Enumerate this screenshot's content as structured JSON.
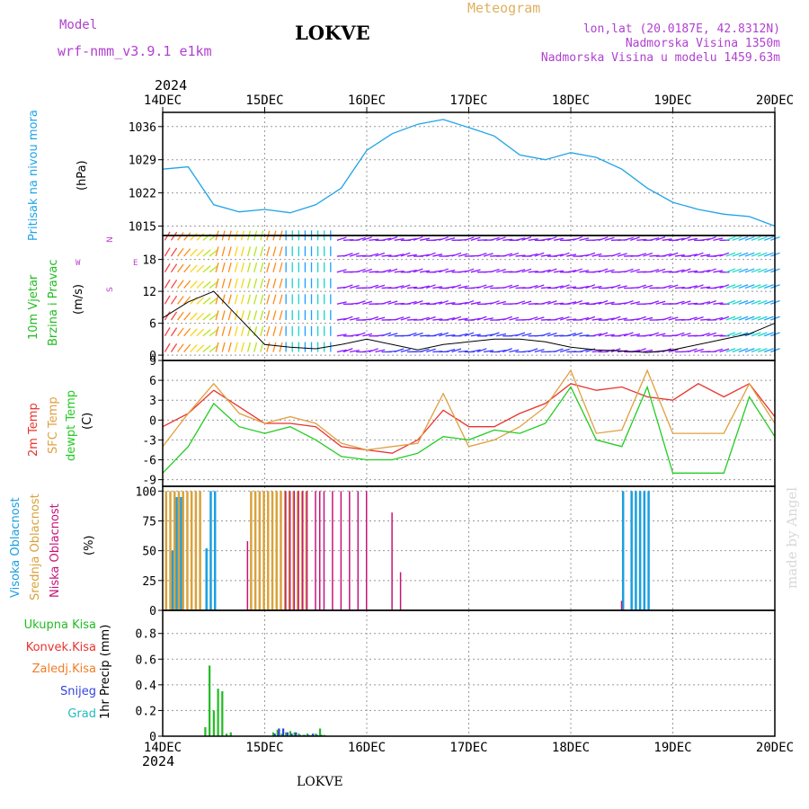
{
  "header": {
    "model_label": "Model",
    "model_name": "wrf-nmm_v3.9.1 e1km",
    "station": "LOKVE",
    "meteogram_label": "Meteogram",
    "lonlat": "lon,lat (20.0187E, 42.8312N)",
    "altitude": "Nadmorska Visina 1350m",
    "model_altitude": "Nadmorska Visina u modelu 1459.63m",
    "year": "2024",
    "footer_station": "LOKVE",
    "credit": "made by Angel"
  },
  "colors": {
    "pressure": "#1fa3e8",
    "wind_speed": "#000000",
    "temp2m": "#e8342e",
    "sfc_temp": "#e0a040",
    "dewpoint": "#22cc22",
    "high_cloud": "#1a9fe0",
    "mid_cloud": "#d9a23c",
    "low_cloud": "#c8137a",
    "total_precip": "#22bb22",
    "conv_precip": "#e8342e",
    "freezing_precip": "#f07d2a",
    "snow": "#3344dd",
    "graupel": "#22bbbb",
    "wind_direction_label": "#c040d0"
  },
  "chart_data": [
    {
      "type": "line",
      "panel": "pressure",
      "ylabel_colored": "Pritisak na nivou mora",
      "ylabel_unit": "(hPa)",
      "ylim": [
        1013,
        1039
      ],
      "yticks": [
        1015,
        1022,
        1029,
        1036
      ],
      "x_ticks": [
        "14DEC",
        "15DEC",
        "16DEC",
        "17DEC",
        "18DEC",
        "19DEC",
        "20DEC"
      ],
      "x_hours": [
        0,
        6,
        12,
        18,
        24,
        30,
        36,
        42,
        48,
        54,
        60,
        66,
        72,
        78,
        84,
        90,
        96,
        102,
        108,
        114,
        120,
        126,
        132,
        138,
        144
      ],
      "grid": true,
      "series": [
        {
          "values": [
            1027.0,
            1027.5,
            1019.5,
            1018.0,
            1018.5,
            1017.8,
            1019.5,
            1023.0,
            1031.0,
            1034.5,
            1036.5,
            1037.5,
            1035.8,
            1034.0,
            1030.0,
            1029.0,
            1030.5,
            1029.5,
            1027.0,
            1023.0,
            1020.0,
            1018.5,
            1017.5,
            1017.0,
            1015.0
          ]
        }
      ]
    },
    {
      "type": "line",
      "panel": "wind",
      "ylabel_colored_1": "10m Vjetar",
      "ylabel_colored_2": "Brzina i Pravac",
      "ylabel_unit": "(m/s)",
      "direction_key_left": "W",
      "direction_key_right": "E",
      "direction_key_top": "N",
      "direction_key_bottom": "S",
      "ylim": [
        -1,
        22.5
      ],
      "yticks": [
        0,
        6,
        12,
        18
      ],
      "x_hours": [
        0,
        6,
        12,
        18,
        24,
        30,
        36,
        42,
        48,
        54,
        60,
        66,
        72,
        78,
        84,
        90,
        96,
        102,
        108,
        114,
        120,
        126,
        132,
        138,
        144
      ],
      "grid": true,
      "series": [
        {
          "name": "",
          "values": [
            7,
            10,
            12,
            7,
            2,
            1.5,
            1.2,
            2,
            3,
            2,
            1,
            2,
            2.5,
            3,
            3,
            2.5,
            1.5,
            1,
            0.8,
            0.5,
            1,
            2,
            3,
            4,
            6
          ]
        }
      ]
    },
    {
      "type": "line",
      "panel": "temperature",
      "ylabel_colored_1": "2m Temp",
      "ylabel_colored_2": "SFC Temp",
      "ylabel_colored_3": "dewpt Temp",
      "ylabel_unit": "(C)",
      "ylim": [
        -10,
        9
      ],
      "yticks": [
        -9,
        -6,
        -3,
        0,
        3,
        6,
        9
      ],
      "x_hours": [
        0,
        6,
        12,
        18,
        24,
        30,
        36,
        42,
        48,
        54,
        60,
        66,
        72,
        78,
        84,
        90,
        96,
        102,
        108,
        114,
        120,
        126,
        132,
        138,
        144
      ],
      "grid": true,
      "series": [
        {
          "name": "2m Temp",
          "values": [
            -1,
            1,
            4.5,
            2,
            -0.5,
            -0.5,
            -1,
            -4,
            -4.5,
            -5,
            -3,
            1.5,
            -1,
            -1,
            1,
            2.5,
            5.5,
            4.5,
            5,
            3.5,
            3,
            5.5,
            3.5,
            5.5,
            0.5
          ]
        },
        {
          "name": "SFC Temp",
          "values": [
            -4,
            1,
            5.5,
            1,
            -0.5,
            0.5,
            -0.5,
            -3.5,
            -4.5,
            -4,
            -3.5,
            4,
            -4,
            -3,
            -1,
            2,
            7.5,
            -2,
            -1.5,
            7.5,
            -2,
            -2,
            -2,
            5.5,
            -0.5
          ]
        },
        {
          "name": "dewpt Temp",
          "values": [
            -8,
            -4,
            2.5,
            -1,
            -2,
            -1,
            -3,
            -5.5,
            -6,
            -6,
            -5,
            -2.5,
            -3,
            -1.5,
            -2,
            -0.5,
            5,
            -3,
            -4,
            5,
            -8,
            -8,
            -8,
            3.5,
            -2.5
          ]
        }
      ]
    },
    {
      "type": "bar",
      "panel": "clouds",
      "ylabel_colored_1": "Visoka Oblacnost",
      "ylabel_colored_2": "Srednja Oblacnost",
      "ylabel_colored_3": "Niska Oblacnost",
      "ylabel_unit": "(%)",
      "ylim": [
        0,
        104
      ],
      "yticks": [
        0,
        25,
        50,
        75,
        100
      ],
      "x_hours": [
        1,
        2,
        3,
        4,
        5,
        6,
        7,
        8,
        9,
        10,
        11,
        12,
        15,
        20,
        21,
        22,
        23,
        24,
        25,
        26,
        27,
        28,
        29,
        30,
        31,
        32,
        33,
        34,
        36,
        37,
        38,
        40,
        42,
        44,
        46,
        48,
        54,
        56,
        60,
        62,
        108,
        110,
        111,
        112,
        113,
        114
      ],
      "grid": true,
      "series": [
        {
          "name": "Visoka Oblacnost",
          "values": [
            0,
            50,
            95,
            95,
            0,
            0,
            0,
            0,
            0,
            52,
            100,
            100,
            0,
            0,
            0,
            0,
            0,
            0,
            0,
            0,
            0,
            0,
            0,
            0,
            0,
            0,
            0,
            0,
            0,
            0,
            0,
            0,
            0,
            0,
            0,
            0,
            0,
            0,
            0,
            0,
            100,
            100,
            100,
            100,
            100,
            100
          ]
        },
        {
          "name": "Srednja Oblacnost",
          "values": [
            100,
            100,
            100,
            100,
            100,
            100,
            100,
            100,
            100,
            0,
            0,
            0,
            0,
            0,
            100,
            100,
            100,
            100,
            100,
            100,
            100,
            100,
            100,
            100,
            100,
            100,
            100,
            100,
            0,
            0,
            0,
            0,
            0,
            0,
            0,
            0,
            0,
            0,
            0,
            0,
            0,
            0,
            0,
            0,
            0,
            0
          ]
        },
        {
          "name": "Niska Oblacnost",
          "values": [
            0,
            0,
            0,
            0,
            0,
            0,
            0,
            0,
            0,
            0,
            0,
            0,
            0,
            58,
            0,
            0,
            0,
            0,
            0,
            0,
            0,
            0,
            100,
            100,
            100,
            100,
            100,
            100,
            100,
            100,
            100,
            100,
            100,
            100,
            100,
            100,
            82,
            32,
            0,
            0,
            8,
            0,
            0,
            0,
            0,
            0
          ]
        }
      ]
    },
    {
      "type": "bar",
      "panel": "precip",
      "legend": [
        "Ukupna Kisa",
        "Konvek.Kisa",
        "Zaledj.Kisa",
        "Snijeg",
        "Grad"
      ],
      "ylabel_unit": "1hr Precip (mm)",
      "ylim": [
        0,
        0.98
      ],
      "yticks": [
        0,
        0.2,
        0.4,
        0.6,
        0.8
      ],
      "x_ticks": [
        "14DEC",
        "15DEC",
        "16DEC",
        "17DEC",
        "18DEC",
        "19DEC",
        "20DEC"
      ],
      "year_label": "2024",
      "x_hours": [
        10,
        11,
        12,
        13,
        14,
        15,
        16,
        17,
        18,
        19,
        26,
        27,
        28,
        29,
        30,
        31,
        32,
        33,
        34,
        35,
        36,
        37,
        38,
        39,
        40,
        41
      ],
      "grid": true,
      "series": [
        {
          "name": "Ukupna Kisa",
          "values": [
            0.07,
            0.55,
            0.2,
            0.37,
            0.35,
            0.02,
            0.03,
            0,
            0,
            0,
            0.03,
            0.05,
            0.02,
            0.03,
            0.04,
            0.03,
            0.02,
            0.01,
            0.02,
            0.01,
            0.02,
            0.06,
            0.01,
            0,
            0,
            0
          ]
        },
        {
          "name": "Snijeg",
          "values": [
            0,
            0,
            0,
            0,
            0,
            0,
            0,
            0,
            0,
            0,
            0.02,
            0.06,
            0.06,
            0.03,
            0.02,
            0.03,
            0.01,
            0.01,
            0.01,
            0.02,
            0.01,
            0.01,
            0,
            0,
            0,
            0
          ]
        }
      ]
    }
  ]
}
